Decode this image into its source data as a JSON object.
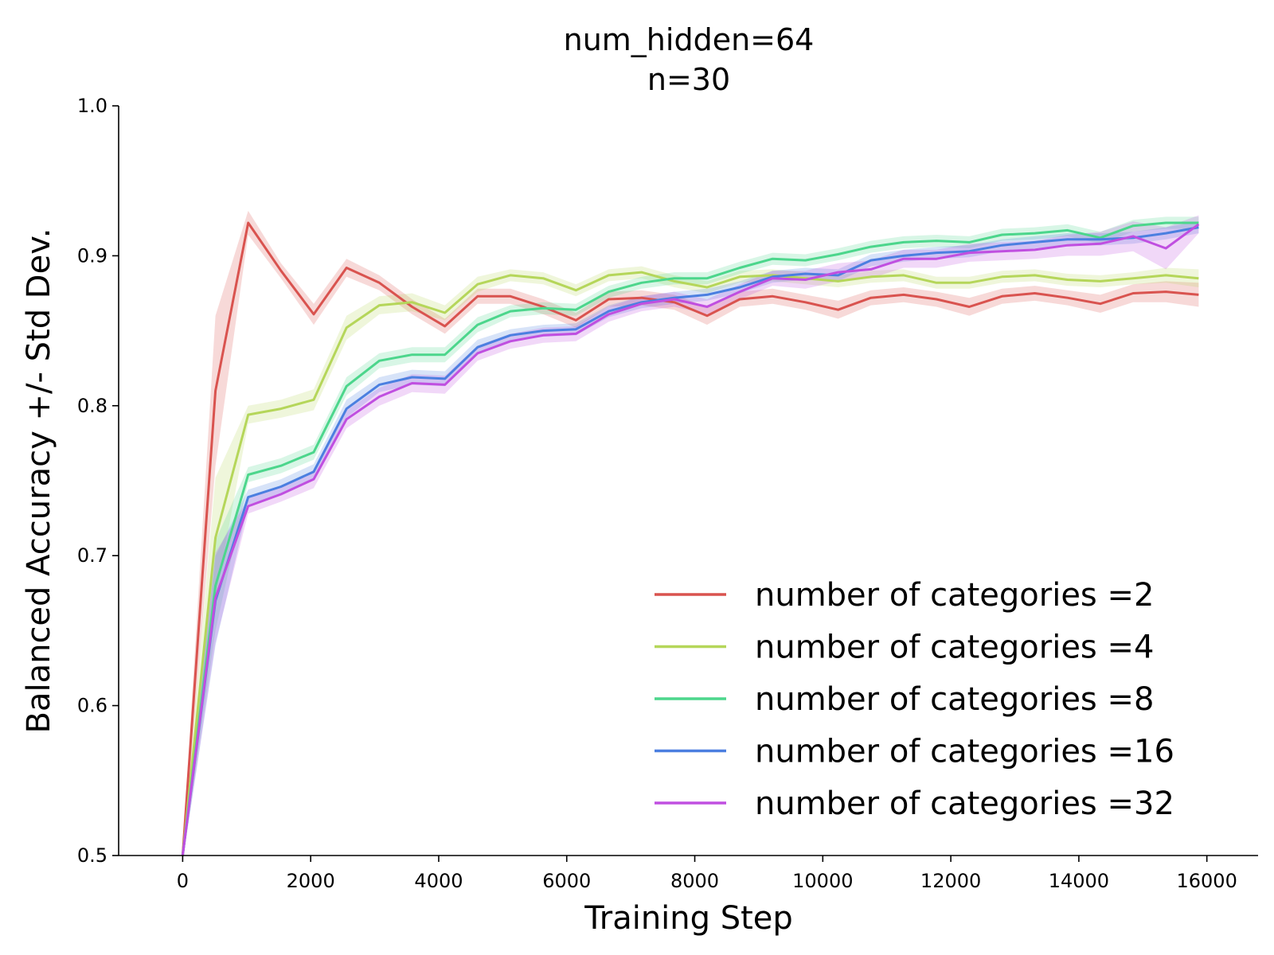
{
  "chart_data": {
    "type": "line",
    "title": [
      "num_hidden=64",
      "n=30"
    ],
    "xlabel": "Training Step",
    "ylabel": "Balanced Accuracy +/- Std Dev.",
    "xlim": [
      -1000,
      16800
    ],
    "ylim": [
      0.5,
      1.0
    ],
    "xticks": [
      0,
      2000,
      4000,
      6000,
      8000,
      10000,
      12000,
      14000,
      16000
    ],
    "xtick_labels": [
      "0",
      "2000",
      "4000",
      "6000",
      "8000",
      "10000",
      "12000",
      "14000",
      "16000"
    ],
    "yticks": [
      0.5,
      0.6,
      0.7,
      0.8,
      0.9,
      1.0
    ],
    "ytick_labels": [
      "0.5",
      "0.6",
      "0.7",
      "0.8",
      "0.9",
      "1.0"
    ],
    "grid": false,
    "legend_position": "bottom-right",
    "x": [
      0,
      512,
      1024,
      1536,
      2048,
      2560,
      3072,
      3584,
      4096,
      4608,
      5120,
      5632,
      6144,
      6656,
      7168,
      7680,
      8192,
      8704,
      9216,
      9728,
      10240,
      10752,
      11264,
      11776,
      12288,
      12800,
      13312,
      13824,
      14336,
      14848,
      15360,
      15872
    ],
    "series": [
      {
        "name": "number of categories =2",
        "color": "#d9534f",
        "values": [
          0.5,
          0.81,
          0.922,
          0.89,
          0.861,
          0.892,
          0.882,
          0.866,
          0.853,
          0.873,
          0.873,
          0.866,
          0.857,
          0.871,
          0.872,
          0.869,
          0.86,
          0.871,
          0.873,
          0.869,
          0.864,
          0.872,
          0.874,
          0.871,
          0.866,
          0.873,
          0.875,
          0.872,
          0.868,
          0.875,
          0.876,
          0.874
        ],
        "std": [
          0.004,
          0.05,
          0.008,
          0.005,
          0.007,
          0.006,
          0.005,
          0.005,
          0.005,
          0.005,
          0.005,
          0.005,
          0.005,
          0.005,
          0.005,
          0.005,
          0.006,
          0.005,
          0.005,
          0.005,
          0.006,
          0.005,
          0.005,
          0.005,
          0.006,
          0.005,
          0.005,
          0.005,
          0.006,
          0.006,
          0.007,
          0.008
        ]
      },
      {
        "name": "number of categories =4",
        "color": "#b5d65a",
        "values": [
          0.5,
          0.712,
          0.794,
          0.798,
          0.804,
          0.852,
          0.867,
          0.869,
          0.862,
          0.881,
          0.887,
          0.885,
          0.877,
          0.887,
          0.889,
          0.883,
          0.879,
          0.886,
          0.887,
          0.885,
          0.883,
          0.886,
          0.887,
          0.882,
          0.882,
          0.886,
          0.887,
          0.884,
          0.883,
          0.885,
          0.887,
          0.885
        ],
        "std": [
          0.004,
          0.04,
          0.006,
          0.006,
          0.007,
          0.008,
          0.006,
          0.006,
          0.005,
          0.005,
          0.004,
          0.004,
          0.004,
          0.004,
          0.004,
          0.004,
          0.004,
          0.004,
          0.004,
          0.004,
          0.004,
          0.004,
          0.004,
          0.004,
          0.004,
          0.004,
          0.004,
          0.004,
          0.004,
          0.004,
          0.005,
          0.006
        ]
      },
      {
        "name": "number of categories =8",
        "color": "#4cd68c",
        "values": [
          0.5,
          0.68,
          0.754,
          0.76,
          0.769,
          0.813,
          0.83,
          0.834,
          0.834,
          0.854,
          0.863,
          0.865,
          0.864,
          0.876,
          0.882,
          0.885,
          0.885,
          0.892,
          0.898,
          0.897,
          0.901,
          0.906,
          0.909,
          0.91,
          0.909,
          0.914,
          0.915,
          0.917,
          0.912,
          0.92,
          0.922,
          0.922
        ],
        "std": [
          0.004,
          0.03,
          0.005,
          0.005,
          0.005,
          0.006,
          0.005,
          0.005,
          0.005,
          0.005,
          0.004,
          0.004,
          0.004,
          0.004,
          0.004,
          0.004,
          0.004,
          0.004,
          0.004,
          0.004,
          0.004,
          0.004,
          0.004,
          0.004,
          0.004,
          0.004,
          0.004,
          0.004,
          0.004,
          0.004,
          0.004,
          0.004
        ]
      },
      {
        "name": "number of categories =16",
        "color": "#4b7fe0",
        "values": [
          0.5,
          0.67,
          0.739,
          0.746,
          0.756,
          0.798,
          0.814,
          0.819,
          0.818,
          0.839,
          0.847,
          0.85,
          0.851,
          0.863,
          0.869,
          0.872,
          0.874,
          0.879,
          0.886,
          0.888,
          0.887,
          0.897,
          0.9,
          0.902,
          0.903,
          0.907,
          0.909,
          0.911,
          0.911,
          0.912,
          0.915,
          0.919
        ],
        "std": [
          0.004,
          0.03,
          0.005,
          0.005,
          0.005,
          0.006,
          0.005,
          0.005,
          0.005,
          0.005,
          0.004,
          0.004,
          0.004,
          0.004,
          0.004,
          0.004,
          0.004,
          0.004,
          0.004,
          0.004,
          0.004,
          0.004,
          0.004,
          0.004,
          0.004,
          0.004,
          0.004,
          0.004,
          0.004,
          0.004,
          0.004,
          0.004
        ]
      },
      {
        "name": "number of categories =32",
        "color": "#c04fe0",
        "values": [
          0.5,
          0.672,
          0.733,
          0.741,
          0.751,
          0.791,
          0.806,
          0.815,
          0.814,
          0.835,
          0.843,
          0.847,
          0.848,
          0.861,
          0.868,
          0.871,
          0.866,
          0.876,
          0.885,
          0.884,
          0.889,
          0.891,
          0.898,
          0.898,
          0.902,
          0.903,
          0.904,
          0.907,
          0.908,
          0.913,
          0.905,
          0.921
        ],
        "std": [
          0.004,
          0.03,
          0.005,
          0.005,
          0.006,
          0.006,
          0.006,
          0.006,
          0.006,
          0.005,
          0.005,
          0.005,
          0.005,
          0.005,
          0.005,
          0.005,
          0.005,
          0.005,
          0.005,
          0.006,
          0.006,
          0.006,
          0.006,
          0.006,
          0.006,
          0.006,
          0.006,
          0.007,
          0.008,
          0.01,
          0.014,
          0.006
        ]
      }
    ]
  }
}
